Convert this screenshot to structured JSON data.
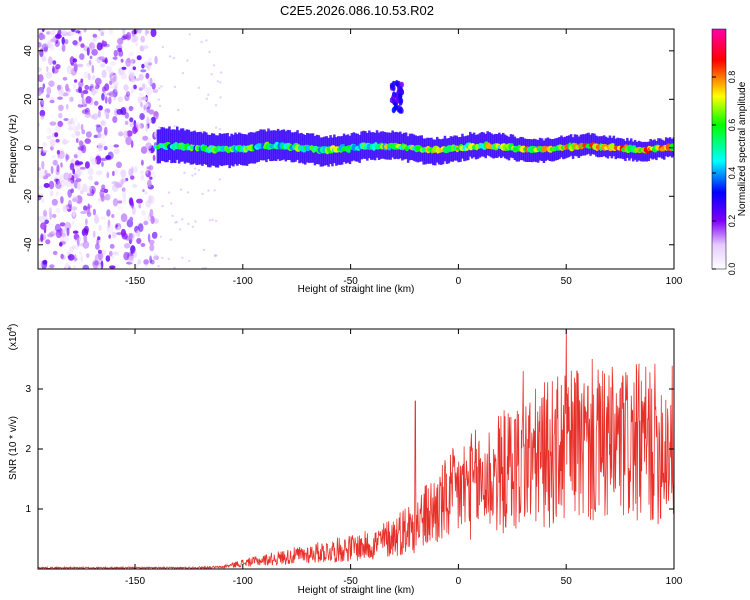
{
  "title": "C2E5.2026.086.10.53.R02",
  "colors": {
    "snr_line": "#e8302a",
    "colormap_stops": [
      "#ffffff",
      "#e6ccff",
      "#8000ff",
      "#0000ff",
      "#00ffff",
      "#00ff00",
      "#ffff00",
      "#ff0000",
      "#ff00aa"
    ]
  },
  "chart_data": [
    {
      "type": "heatmap",
      "name": "spectrogram",
      "xlabel": "Height of straight line (km)",
      "ylabel": "Frequency (Hz)",
      "xlim": [
        -195,
        100
      ],
      "ylim": [
        -50,
        49
      ],
      "xticks": [
        -150,
        -100,
        -50,
        0,
        50,
        100
      ],
      "xtick_labels": [
        "-150",
        "-100",
        "-50",
        "0",
        "50",
        "100"
      ],
      "yticks": [
        -40,
        -20,
        0,
        20,
        40
      ],
      "ytick_labels": [
        "-40",
        "-20",
        "0",
        "20",
        "40"
      ],
      "description_regions": [
        {
          "x_range": [
            -195,
            -140
          ],
          "freq_range": [
            -50,
            49
          ],
          "amplitude": 0.1,
          "kind": "diffuse noise"
        },
        {
          "x_range": [
            -140,
            100
          ],
          "freq_center": 0,
          "freq_halfwidth": 7,
          "amplitude": 0.4,
          "kind": "signal band"
        },
        {
          "x_range": [
            -31,
            -26
          ],
          "freq_range": [
            15,
            27
          ],
          "amplitude": 0.15,
          "kind": "transient blob"
        }
      ],
      "colorbar": {
        "label": "Normalized spectral amplitude",
        "range": [
          0,
          1
        ],
        "ticks": [
          0,
          0.2,
          0.4,
          0.6,
          0.8
        ],
        "tick_labels": [
          "0.0",
          "0.2",
          "0.4",
          "0.6",
          "0.8"
        ]
      }
    },
    {
      "type": "line",
      "name": "snr",
      "xlabel": "Height of straight line (km)",
      "ylabel": "SNR (10 * v/v)",
      "y_multiplier_label": "(x10",
      "y_multiplier_exponent": "4",
      "xlim": [
        -195,
        100
      ],
      "ylim": [
        0,
        4
      ],
      "xticks": [
        -150,
        -100,
        -50,
        0,
        50,
        100
      ],
      "xtick_labels": [
        "-150",
        "-100",
        "-50",
        "0",
        "50",
        "100"
      ],
      "yticks": [
        1,
        2,
        3
      ],
      "ytick_labels": [
        "1",
        "2",
        "3"
      ],
      "trend": {
        "x": [
          -195,
          -130,
          -110,
          -100,
          -80,
          -60,
          -40,
          -30,
          -20,
          -10,
          0,
          20,
          40,
          50,
          70,
          100
        ],
        "y": [
          0.02,
          0.02,
          0.03,
          0.1,
          0.2,
          0.3,
          0.4,
          0.55,
          0.75,
          1.0,
          1.3,
          1.6,
          1.9,
          2.0,
          2.05,
          2.1
        ]
      },
      "peaks": [
        {
          "x": -20,
          "y": 2.8
        },
        {
          "x": 30,
          "y": 3.3
        },
        {
          "x": 50,
          "y": 4.0
        },
        {
          "x": 55,
          "y": 3.3
        },
        {
          "x": 62,
          "y": 3.5
        }
      ],
      "series_color": "#e8302a"
    }
  ]
}
